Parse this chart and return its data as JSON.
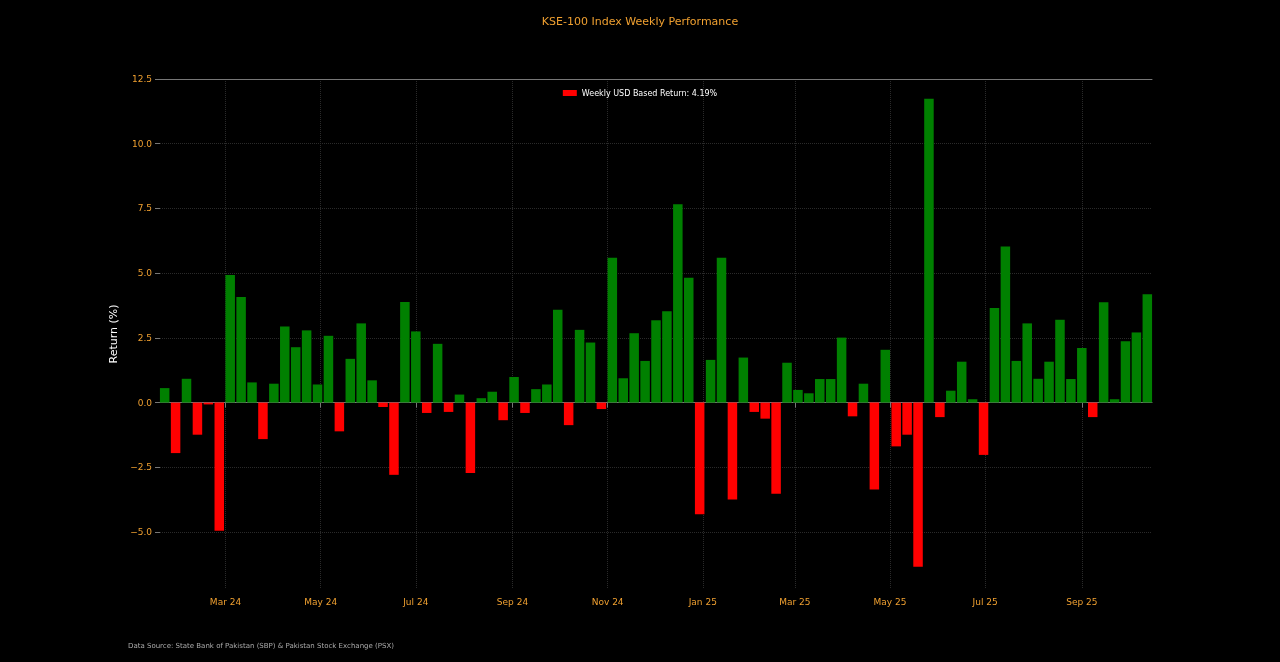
{
  "chart_data": {
    "type": "bar",
    "title": "KSE-100 Index Weekly Performance",
    "ylabel": "Return (%)",
    "x": [
      "2024-01-22",
      "2024-01-29",
      "2024-02-05",
      "2024-02-12",
      "2024-02-19",
      "2024-02-26",
      "2024-03-04",
      "2024-03-11",
      "2024-03-18",
      "2024-03-25",
      "2024-04-01",
      "2024-04-08",
      "2024-04-15",
      "2024-04-22",
      "2024-04-29",
      "2024-05-06",
      "2024-05-13",
      "2024-05-20",
      "2024-05-27",
      "2024-06-03",
      "2024-06-10",
      "2024-06-17",
      "2024-06-24",
      "2024-07-01",
      "2024-07-08",
      "2024-07-15",
      "2024-07-22",
      "2024-07-29",
      "2024-08-05",
      "2024-08-12",
      "2024-08-19",
      "2024-08-26",
      "2024-09-02",
      "2024-09-09",
      "2024-09-16",
      "2024-09-23",
      "2024-09-30",
      "2024-10-07",
      "2024-10-14",
      "2024-10-21",
      "2024-10-28",
      "2024-11-04",
      "2024-11-11",
      "2024-11-18",
      "2024-11-25",
      "2024-12-02",
      "2024-12-09",
      "2024-12-16",
      "2024-12-23",
      "2024-12-30",
      "2025-01-06",
      "2025-01-13",
      "2025-01-20",
      "2025-01-27",
      "2025-02-03",
      "2025-02-10",
      "2025-02-17",
      "2025-02-24",
      "2025-03-03",
      "2025-03-10",
      "2025-03-17",
      "2025-03-24",
      "2025-03-31",
      "2025-04-07",
      "2025-04-14",
      "2025-04-21",
      "2025-04-28",
      "2025-05-05",
      "2025-05-12",
      "2025-05-19",
      "2025-05-26",
      "2025-06-02",
      "2025-06-09",
      "2025-06-16",
      "2025-06-23",
      "2025-06-30",
      "2025-07-07",
      "2025-07-14",
      "2025-07-21",
      "2025-07-28",
      "2025-08-04",
      "2025-08-11",
      "2025-08-18",
      "2025-08-25",
      "2025-09-01",
      "2025-09-08",
      "2025-09-15",
      "2025-09-22",
      "2025-09-29",
      "2025-10-06",
      "2025-10-13"
    ],
    "series": [
      {
        "name": "Weekly USD Based Return: 4.19%",
        "color": "#ff0000",
        "values": [
          0.56,
          -1.95,
          0.92,
          -1.24,
          -0.07,
          -4.95,
          4.93,
          4.08,
          0.78,
          -1.41,
          0.73,
          2.94,
          2.14,
          2.79,
          0.7,
          2.58,
          -1.11,
          1.69,
          3.06,
          0.86,
          -0.17,
          -2.79,
          3.89,
          2.75,
          -0.4,
          2.27,
          -0.36,
          0.31,
          -2.72,
          0.17,
          0.42,
          -0.68,
          0.99,
          -0.4,
          0.52,
          0.7,
          3.59,
          -0.87,
          2.81,
          2.32,
          -0.25,
          5.6,
          0.94,
          2.68,
          1.61,
          3.18,
          3.53,
          7.66,
          4.82,
          -4.31,
          1.65,
          5.6,
          -3.74,
          1.74,
          -0.36,
          -0.62,
          -3.52,
          1.54,
          0.49,
          0.36,
          0.91,
          0.91,
          2.51,
          -0.53,
          0.73,
          -3.36,
          2.04,
          -1.69,
          -1.24,
          -6.34,
          11.74,
          -0.56,
          0.46,
          1.58,
          0.13,
          -2.02,
          3.65,
          6.03,
          1.61,
          3.06,
          0.92,
          1.58,
          3.2,
          0.91,
          2.11,
          -0.56,
          3.88,
          0.13,
          2.37,
          2.71,
          4.19
        ],
        "colors": [
          "#008000",
          "#ff0000",
          "#008000",
          "#ff0000",
          "#ff0000",
          "#ff0000",
          "#008000",
          "#008000",
          "#008000",
          "#ff0000",
          "#008000",
          "#008000",
          "#008000",
          "#008000",
          "#008000",
          "#008000",
          "#ff0000",
          "#008000",
          "#008000",
          "#008000",
          "#ff0000",
          "#ff0000",
          "#008000",
          "#008000",
          "#ff0000",
          "#008000",
          "#ff0000",
          "#008000",
          "#ff0000",
          "#008000",
          "#008000",
          "#ff0000",
          "#008000",
          "#ff0000",
          "#008000",
          "#008000",
          "#008000",
          "#ff0000",
          "#008000",
          "#008000",
          "#ff0000",
          "#008000",
          "#008000",
          "#008000",
          "#008000",
          "#008000",
          "#008000",
          "#008000",
          "#008000",
          "#ff0000",
          "#008000",
          "#008000",
          "#ff0000",
          "#008000",
          "#ff0000",
          "#ff0000",
          "#ff0000",
          "#008000",
          "#008000",
          "#008000",
          "#008000",
          "#008000",
          "#008000",
          "#ff0000",
          "#008000",
          "#ff0000",
          "#008000",
          "#ff0000",
          "#ff0000",
          "#ff0000",
          "#008000",
          "#ff0000",
          "#008000",
          "#008000",
          "#008000",
          "#ff0000",
          "#008000",
          "#008000",
          "#008000",
          "#008000",
          "#008000",
          "#008000",
          "#008000",
          "#008000",
          "#008000",
          "#ff0000",
          "#008000",
          "#008000",
          "#008000",
          "#008000",
          "#008000"
        ]
      }
    ],
    "xlim": [
      "2024-01-19",
      "2025-10-16"
    ],
    "xticks": [
      {
        "value": "2024-03-01",
        "label": "Mar 24"
      },
      {
        "value": "2024-05-01",
        "label": "May 24"
      },
      {
        "value": "2024-07-01",
        "label": "Jul 24"
      },
      {
        "value": "2024-09-01",
        "label": "Sep 24"
      },
      {
        "value": "2024-11-01",
        "label": "Nov 24"
      },
      {
        "value": "2025-01-01",
        "label": "Jan 25"
      },
      {
        "value": "2025-03-01",
        "label": "Mar 25"
      },
      {
        "value": "2025-05-01",
        "label": "May 25"
      },
      {
        "value": "2025-07-01",
        "label": "Jul 25"
      },
      {
        "value": "2025-09-01",
        "label": "Sep 25"
      }
    ],
    "ylim": [
      -7.2,
      12.5
    ],
    "yticks": [
      {
        "value": -5,
        "label": "−5.0"
      },
      {
        "value": -2.5,
        "label": "−2.5"
      },
      {
        "value": 0,
        "label": "0.0"
      },
      2.5,
      {
        "value": 5,
        "label": "5.0"
      },
      7.5,
      {
        "value": 10,
        "label": "10.0"
      },
      12.5
    ],
    "grid": true,
    "legend": "top",
    "annotations": [
      "Data Source: State Bank of Pakistan (SBP) & Pakistan Stock Exchange (PSX)"
    ]
  }
}
